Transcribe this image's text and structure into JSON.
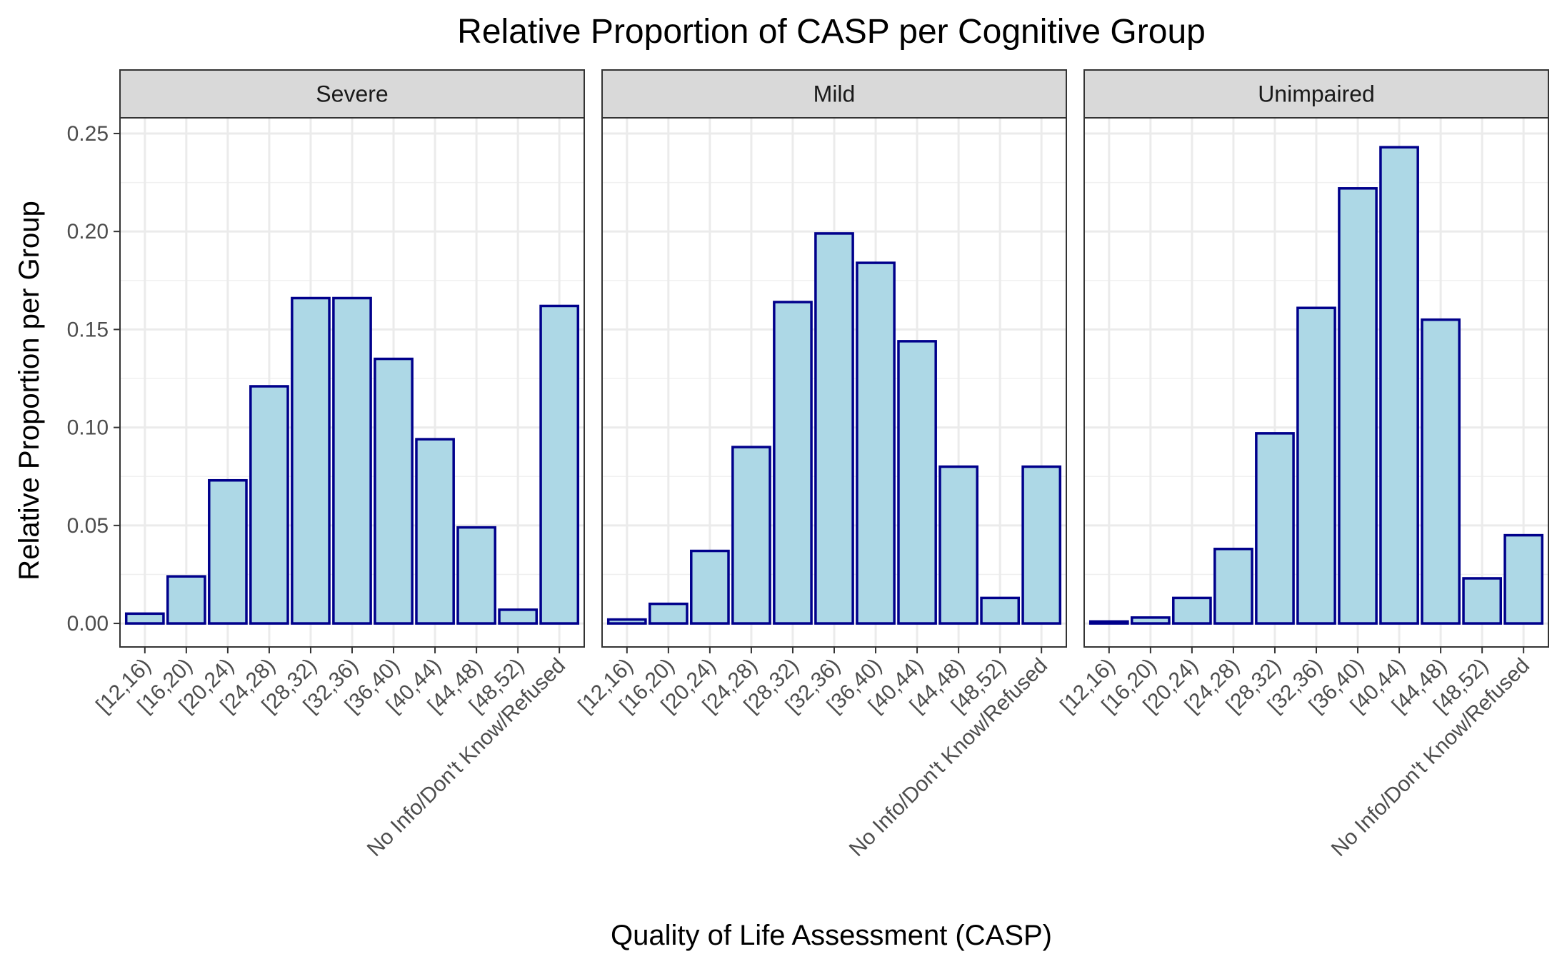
{
  "chart_data": {
    "type": "bar",
    "title": "Relative Proportion of CASP per Cognitive Group",
    "xlabel": "Quality of Life Assessment (CASP)",
    "ylabel": "Relative Proportion per Group",
    "ylim": [
      -0.012,
      0.258
    ],
    "yticks": [
      0.0,
      0.05,
      0.1,
      0.15,
      0.2,
      0.25
    ],
    "ytick_labels": [
      "0.00",
      "0.05",
      "0.10",
      "0.15",
      "0.20",
      "0.25"
    ],
    "grid": true,
    "bar_fill": "#add8e6",
    "bar_stroke": "#00008b",
    "categories": [
      "[12,16)",
      "[16,20)",
      "[20,24)",
      "[24,28)",
      "[28,32)",
      "[32,36)",
      "[36,40)",
      "[40,44)",
      "[44,48)",
      "[48,52)",
      "No Info/Don't Know/Refused"
    ],
    "facets": [
      {
        "name": "Severe",
        "values": [
          0.005,
          0.024,
          0.073,
          0.121,
          0.166,
          0.166,
          0.135,
          0.094,
          0.049,
          0.007,
          0.162
        ]
      },
      {
        "name": "Mild",
        "values": [
          0.002,
          0.01,
          0.037,
          0.09,
          0.164,
          0.199,
          0.184,
          0.144,
          0.08,
          0.013,
          0.08
        ]
      },
      {
        "name": "Unimpaired",
        "values": [
          0.001,
          0.003,
          0.013,
          0.038,
          0.097,
          0.161,
          0.222,
          0.243,
          0.155,
          0.023,
          0.045
        ]
      }
    ]
  }
}
